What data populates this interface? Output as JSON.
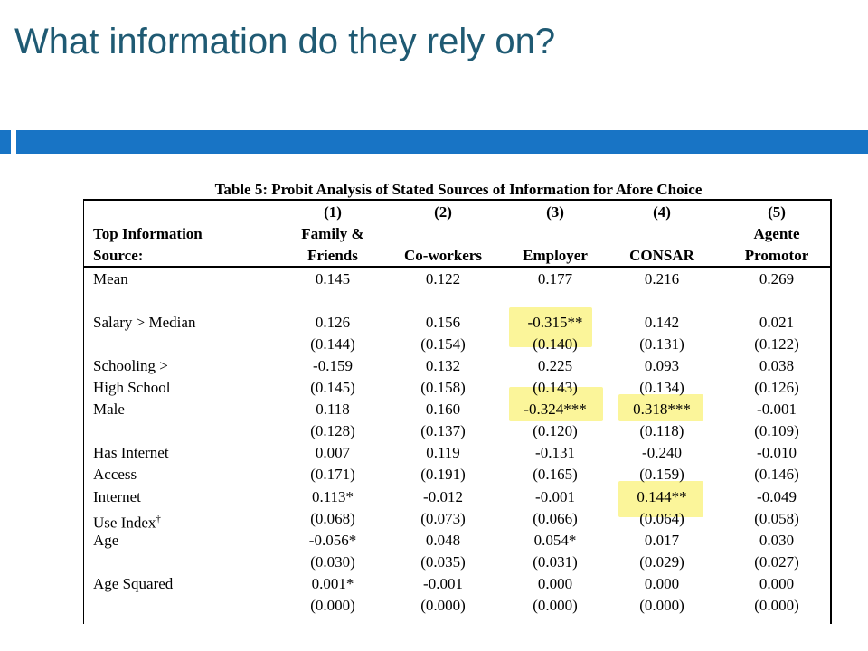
{
  "slide": {
    "title": "What information do they rely on?",
    "colors": {
      "title": "#1f5a73",
      "bar": "#1874c5",
      "highlight": "#fbf59a"
    }
  },
  "table": {
    "caption": "Table 5: Probit Analysis of Stated Sources of Information for Afore Choice",
    "row_header": [
      "Top Information",
      "Source:"
    ],
    "columns": [
      {
        "number": "(1)",
        "line1": "Family &",
        "line2": "Friends"
      },
      {
        "number": "(2)",
        "line1": "",
        "line2": "Co-workers"
      },
      {
        "number": "(3)",
        "line1": "",
        "line2": "Employer"
      },
      {
        "number": "(4)",
        "line1": "",
        "line2": "CONSAR"
      },
      {
        "number": "(5)",
        "line1": "Agente",
        "line2": "Promotor"
      }
    ],
    "rows": [
      {
        "label": "Mean",
        "values": [
          "0.145",
          "0.122",
          "0.177",
          "0.216",
          "0.269"
        ]
      },
      {
        "label": "Salary > Median",
        "values": [
          "0.126",
          "0.156",
          "-0.315**",
          "0.142",
          "0.021"
        ]
      },
      {
        "label": "",
        "values": [
          "(0.144)",
          "(0.154)",
          "(0.140)",
          "(0.131)",
          "(0.122)"
        ]
      },
      {
        "label": "Schooling >",
        "values": [
          "-0.159",
          "0.132",
          "0.225",
          "0.093",
          "0.038"
        ]
      },
      {
        "label": "High School",
        "values": [
          "(0.145)",
          "(0.158)",
          "(0.143)",
          "(0.134)",
          "(0.126)"
        ]
      },
      {
        "label": "Male",
        "values": [
          "0.118",
          "0.160",
          "-0.324***",
          "0.318***",
          "-0.001"
        ]
      },
      {
        "label": "",
        "values": [
          "(0.128)",
          "(0.137)",
          "(0.120)",
          "(0.118)",
          "(0.109)"
        ]
      },
      {
        "label": "Has Internet",
        "values": [
          "0.007",
          "0.119",
          "-0.131",
          "-0.240",
          "-0.010"
        ]
      },
      {
        "label": "Access",
        "values": [
          "(0.171)",
          "(0.191)",
          "(0.165)",
          "(0.159)",
          "(0.146)"
        ]
      },
      {
        "label": "Internet",
        "values": [
          "0.113*",
          "-0.012",
          "-0.001",
          "0.144**",
          "-0.049"
        ]
      },
      {
        "label": "Use Index",
        "sup": "†",
        "values": [
          "(0.068)",
          "(0.073)",
          "(0.066)",
          "(0.064)",
          "(0.058)"
        ]
      },
      {
        "label": "Age",
        "values": [
          "-0.056*",
          "0.048",
          "0.054*",
          "0.017",
          "0.030"
        ]
      },
      {
        "label": "",
        "values": [
          "(0.030)",
          "(0.035)",
          "(0.031)",
          "(0.029)",
          "(0.027)"
        ]
      },
      {
        "label": "Age Squared",
        "values": [
          "0.001*",
          "-0.001",
          "0.000",
          "0.000",
          "0.000"
        ]
      },
      {
        "label": "",
        "values": [
          "(0.000)",
          "(0.000)",
          "(0.000)",
          "(0.000)",
          "(0.000)"
        ]
      }
    ]
  }
}
